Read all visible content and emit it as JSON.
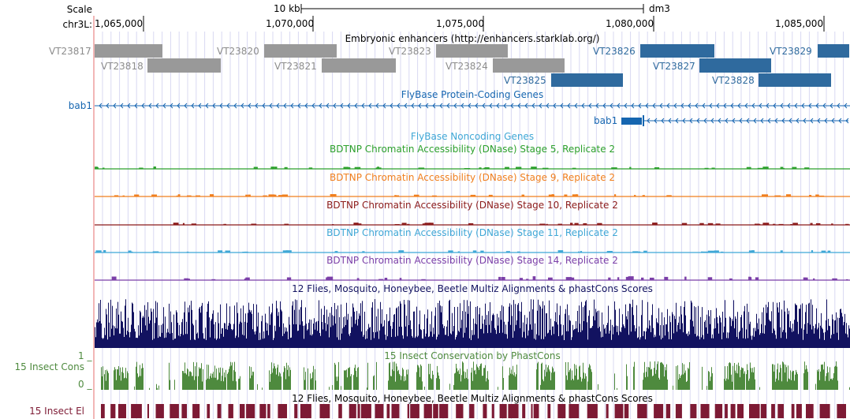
{
  "ruler": {
    "scale_label": "Scale",
    "scale_bar_label": "10 kb",
    "assembly": "dm3",
    "chrom_label": "chr3L:",
    "positions": [
      "1,065,000",
      "1,070,000",
      "1,075,000",
      "1,080,000",
      "1,085,000"
    ]
  },
  "tracks": {
    "enhancers": {
      "title": "Embryonic enhancers (http://enhancers.starklab.org/)",
      "items": [
        {
          "name": "VT23817",
          "color": "gray"
        },
        {
          "name": "VT23818",
          "color": "gray"
        },
        {
          "name": "VT23820",
          "color": "gray"
        },
        {
          "name": "VT23821",
          "color": "gray"
        },
        {
          "name": "VT23823",
          "color": "gray"
        },
        {
          "name": "VT23824",
          "color": "gray"
        },
        {
          "name": "VT23825",
          "color": "blue"
        },
        {
          "name": "VT23826",
          "color": "blue"
        },
        {
          "name": "VT23827",
          "color": "blue"
        },
        {
          "name": "VT23828",
          "color": "blue"
        },
        {
          "name": "VT23829",
          "color": "blue"
        }
      ]
    },
    "protein_coding": {
      "title": "FlyBase Protein-Coding Genes",
      "gene1": "bab1",
      "gene2": "bab1"
    },
    "noncoding": {
      "title": "FlyBase Noncoding Genes"
    },
    "dnase": [
      {
        "title": "BDTNP Chromatin Accessibility (DNase) Stage 5, Replicate 2",
        "color": "#2ca02c"
      },
      {
        "title": "BDTNP Chromatin Accessibility (DNase) Stage 9, Replicate 2",
        "color": "#f07f1e"
      },
      {
        "title": "BDTNP Chromatin Accessibility (DNase) Stage 10, Replicate 2",
        "color": "#8b1a1a"
      },
      {
        "title": "BDTNP Chromatin Accessibility (DNase) Stage 11, Replicate 2",
        "color": "#3fa7d6"
      },
      {
        "title": "BDTNP Chromatin Accessibility (DNase) Stage 14, Replicate 2",
        "color": "#7b3fa8"
      }
    ],
    "multiz": {
      "title": "12 Flies, Mosquito, Honeybee, Beetle Multiz Alignments & phastCons Scores"
    },
    "phastcons": {
      "title": "15 Insect Conservation by PhastCons",
      "side_label": "15 Insect Cons",
      "scale_max": "1 _",
      "scale_min": "0 _"
    },
    "elements": {
      "title": "12 Flies, Mosquito, Honeybee, Beetle Multiz Alignments & phastCons Scores",
      "side_label": "15 Insect El"
    }
  },
  "colors": {
    "enhancer_gray": "#999999",
    "enhancer_gray_text": "#8c8c8c",
    "enhancer_blue": "#2f6a9e",
    "gene_blue": "#1565b0",
    "multiz_navy": "#121260",
    "phast_green": "#4e8a3e",
    "element_maroon": "#7d1a34",
    "grid_line": "#d8d8f2",
    "window_edge": "#f2b6b6"
  }
}
